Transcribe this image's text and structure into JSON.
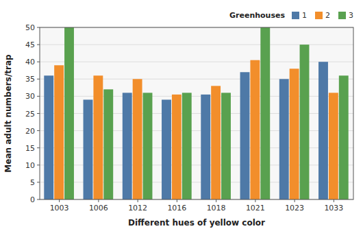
{
  "chart_data": {
    "type": "bar",
    "xlabel": "Different hues of yellow color",
    "ylabel": "Mean adult numbers/trap",
    "legend_title": "Greenhouses",
    "categories": [
      "1003",
      "1006",
      "1012",
      "1016",
      "1018",
      "1021",
      "1023",
      "1033"
    ],
    "series": [
      {
        "name": "1",
        "color": "#4e79a7",
        "values": [
          36,
          29,
          31,
          29,
          30.5,
          37,
          35,
          40
        ]
      },
      {
        "name": "2",
        "color": "#f28e2b",
        "values": [
          39,
          36,
          35,
          30.5,
          33,
          40.5,
          38,
          31
        ]
      },
      {
        "name": "3",
        "color": "#59a14f",
        "values": [
          50,
          32,
          31,
          31,
          31,
          50,
          45,
          36
        ]
      }
    ],
    "ylim": [
      0,
      50
    ],
    "yticks": [
      0,
      5,
      10,
      15,
      20,
      25,
      30,
      35,
      40,
      45,
      50
    ],
    "grid": true,
    "legend": "top right"
  }
}
